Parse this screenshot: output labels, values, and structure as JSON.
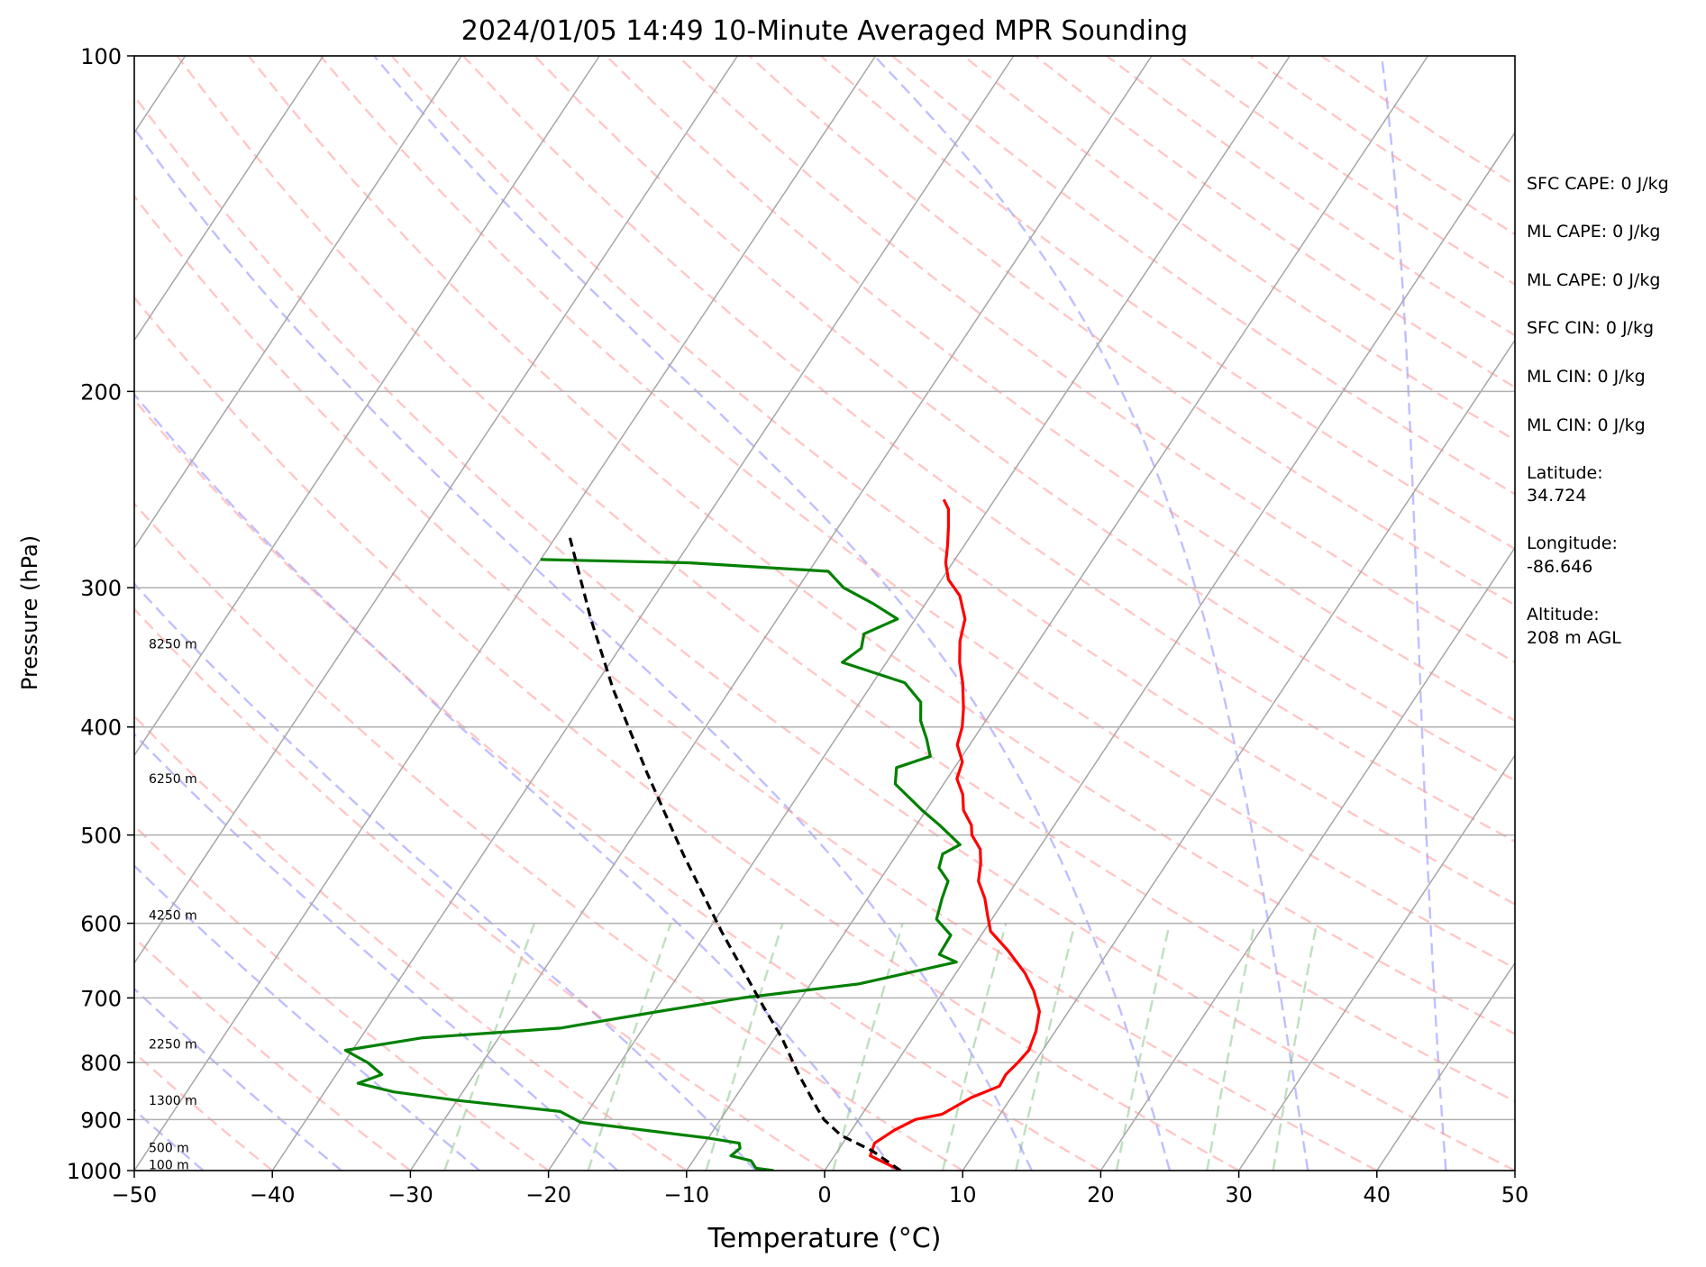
{
  "chart_data": {
    "type": "line",
    "title": "2024/01/05 14:49 10-Minute Averaged MPR Sounding",
    "xlabel": "Temperature (°C)",
    "ylabel": "Pressure (hPa)",
    "xlim": [
      -50,
      50
    ],
    "ylim": [
      1000,
      100
    ],
    "y_scale": "log",
    "x_ticks": [
      -50,
      -40,
      -30,
      -20,
      -10,
      0,
      10,
      20,
      30,
      40,
      50
    ],
    "x_tick_labels": [
      "−50",
      "−40",
      "−30",
      "−20",
      "−10",
      "0",
      "10",
      "20",
      "30",
      "40",
      "50"
    ],
    "y_ticks": [
      1000,
      900,
      800,
      700,
      600,
      500,
      400,
      300,
      200,
      100
    ],
    "y_tick_labels": [
      "1000",
      "900",
      "800",
      "700",
      "600",
      "500",
      "400",
      "300",
      "200",
      "100"
    ],
    "grid": true,
    "series": [
      {
        "color": "#ff0000",
        "temperature_c": [
          5.5,
          2.6,
          2.3,
          3.1,
          4.1,
          5.8,
          7.1,
          8.6,
          8.5,
          8.8,
          9.0,
          8.6,
          7.9,
          6.5,
          5.0,
          2.7,
          0.5,
          -0.5,
          -1.5,
          -2.8,
          -3.5,
          -4.2,
          -5.5,
          -6.0,
          -7.3,
          -8.1,
          -9.3,
          -9.7,
          -10.9,
          -11.4,
          -12.2,
          -13.5,
          -14.7,
          -15.7,
          -16.4,
          -17.9,
          -19.5,
          -20.5,
          -21.2,
          -22.0,
          -22.9,
          -23.7
        ],
        "pressure_hpa": [
          1000,
          970,
          945,
          920,
          900,
          890,
          860,
          840,
          820,
          800,
          780,
          750,
          720,
          690,
          665,
          635,
          610,
          590,
          570,
          550,
          530,
          515,
          500,
          490,
          475,
          460,
          445,
          430,
          415,
          400,
          385,
          365,
          350,
          335,
          320,
          305,
          295,
          285,
          275,
          265,
          255,
          250
        ]
      },
      {
        "color": "#008000",
        "temperature_c": [
          -3.7,
          -5.1,
          -5.8,
          -7.5,
          -7.2,
          -7.5,
          -10.0,
          -20.0,
          -22.0,
          -30.0,
          -35.0,
          -38.0,
          -36.7,
          -38.3,
          -39.4,
          -40.5,
          -35.5,
          -26.0,
          -19.7,
          -14.3,
          -6.5,
          -0.5,
          -2.1,
          -2.2,
          -4.0,
          -4.6,
          -5.0,
          -6.3,
          -6.7,
          -5.9,
          -8.3,
          -10.3,
          -13.5,
          -14.2,
          -12.3,
          -13.4,
          -14.7,
          -15.6,
          -17.7,
          -23.2,
          -22.5,
          -23.0,
          -21.3,
          -23.8,
          -26.7,
          -28.6,
          -39.0,
          -50.0
        ],
        "pressure_hpa": [
          1000,
          995,
          980,
          970,
          955,
          945,
          935,
          905,
          885,
          865,
          850,
          835,
          820,
          800,
          790,
          780,
          760,
          745,
          720,
          700,
          680,
          650,
          640,
          615,
          595,
          570,
          550,
          535,
          520,
          510,
          490,
          475,
          450,
          435,
          425,
          410,
          395,
          380,
          365,
          350,
          340,
          330,
          320,
          310,
          300,
          290,
          285,
          283
        ]
      },
      {
        "color": "#000000",
        "temperature_c": [
          5.5,
          2.5,
          -0.5,
          -2.5,
          -3.5,
          -6.5,
          -9.5,
          -12.5,
          -19.0,
          -25.5,
          -32.0,
          -38.5,
          -43.5,
          -49.0
        ],
        "pressure_hpa": [
          1000,
          960,
          930,
          900,
          880,
          820,
          760,
          710,
          610,
          520,
          440,
          370,
          320,
          270
        ]
      }
    ],
    "height_labels": [
      {
        "label": "100 m",
        "pressure_hpa": 988
      },
      {
        "label": "500 m",
        "pressure_hpa": 954
      },
      {
        "label": "1300 m",
        "pressure_hpa": 865
      },
      {
        "label": "2250 m",
        "pressure_hpa": 770
      },
      {
        "label": "4250 m",
        "pressure_hpa": 590
      },
      {
        "label": "6250 m",
        "pressure_hpa": 445
      },
      {
        "label": "8250 m",
        "pressure_hpa": 337
      }
    ],
    "reference_lines": {
      "isotherms_color": "#a6a6a6",
      "dry_adiabats_color": "#ff9999",
      "moist_adiabats_color": "#8080ff",
      "mixing_ratio_color": "#80c080"
    }
  },
  "stats": [
    "SFC CAPE: 0 J/kg",
    "ML CAPE: 0 J/kg",
    "ML CAPE: 0 J/kg",
    "SFC CIN: 0 J/kg",
    "ML CIN: 0 J/kg",
    "ML CIN: 0 J/kg"
  ],
  "location": {
    "lat_label": "Latitude:",
    "lat_value": "34.724",
    "lon_label": "Longitude:",
    "lon_value": "-86.646",
    "alt_label": "Altitude:",
    "alt_value": "208 m AGL"
  }
}
